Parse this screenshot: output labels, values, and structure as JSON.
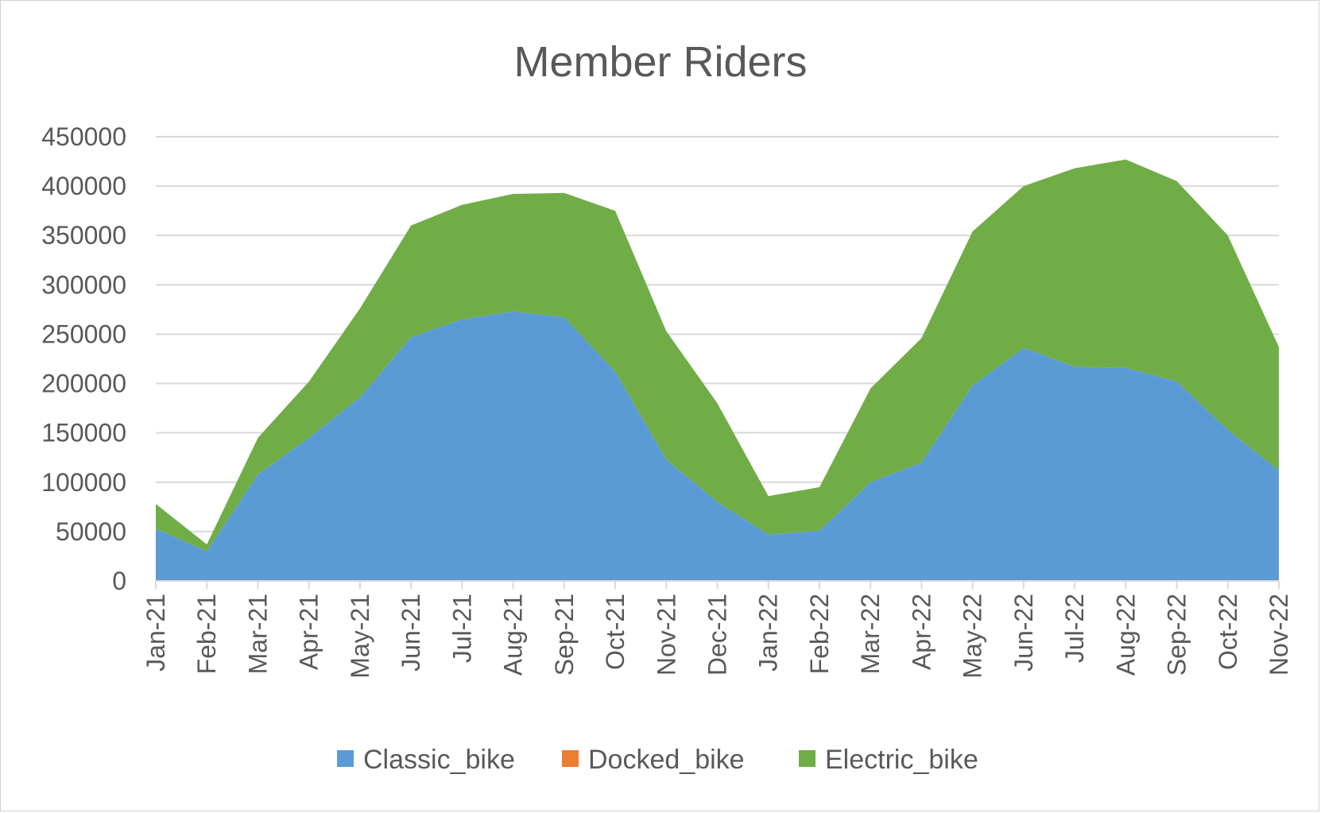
{
  "chart_data": {
    "type": "area",
    "stacked": true,
    "title": "Member Riders",
    "xlabel": "",
    "ylabel": "",
    "ylim": [
      0,
      450000
    ],
    "yticks": [
      0,
      50000,
      100000,
      150000,
      200000,
      250000,
      300000,
      350000,
      400000,
      450000
    ],
    "ytick_labels": [
      "0",
      "50000",
      "100000",
      "150000",
      "200000",
      "250000",
      "300000",
      "350000",
      "400000",
      "450000"
    ],
    "grid": true,
    "legend_position": "bottom",
    "categories": [
      "Jan-21",
      "Feb-21",
      "Mar-21",
      "Apr-21",
      "May-21",
      "Jun-21",
      "Jul-21",
      "Aug-21",
      "Sep-21",
      "Oct-21",
      "Nov-21",
      "Dec-21",
      "Jan-22",
      "Feb-22",
      "Mar-22",
      "Apr-22",
      "May-22",
      "Jun-22",
      "Jul-22",
      "Aug-22",
      "Sep-22",
      "Oct-22",
      "Nov-22"
    ],
    "series": [
      {
        "name": "Classic_bike",
        "color": "#5b9bd5",
        "values": [
          53000,
          30000,
          108000,
          145000,
          186000,
          247000,
          265000,
          273000,
          267000,
          212000,
          123000,
          80000,
          47000,
          51000,
          100000,
          120000,
          198000,
          236000,
          217000,
          216000,
          202000,
          153000,
          112000
        ]
      },
      {
        "name": "Docked_bike",
        "color": "#ed7d31",
        "values": [
          0,
          0,
          0,
          0,
          0,
          0,
          0,
          0,
          0,
          0,
          0,
          0,
          0,
          0,
          0,
          0,
          0,
          0,
          0,
          0,
          0,
          0,
          0
        ]
      },
      {
        "name": "Electric_bike",
        "color": "#70ad47",
        "values": [
          25000,
          7000,
          37000,
          57000,
          90000,
          113000,
          116000,
          119000,
          126000,
          163000,
          130000,
          100000,
          39000,
          44000,
          95000,
          126000,
          156000,
          164000,
          201000,
          211000,
          203000,
          197000,
          125000
        ]
      }
    ]
  }
}
